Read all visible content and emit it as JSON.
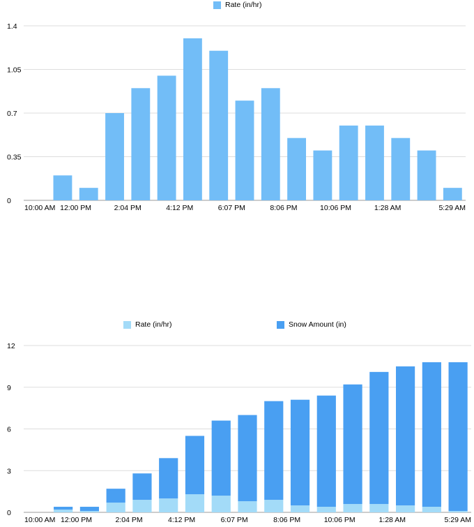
{
  "chart_data": [
    {
      "type": "bar",
      "categories": [
        "10:00 AM",
        "",
        "12:00 PM",
        "",
        "2:04 PM",
        "",
        "4:12 PM",
        "",
        "6:07 PM",
        "",
        "8:06 PM",
        "",
        "10:06 PM",
        "",
        "1:28 AM",
        "",
        "5:29 AM"
      ],
      "x_tick_labels": [
        "10:00 AM",
        "12:00 PM",
        "2:04 PM",
        "4:12 PM",
        "6:07 PM",
        "8:06 PM",
        "10:06 PM",
        "1:28 AM",
        "5:29 AM"
      ],
      "series": [
        {
          "name": "Rate (in/hr)",
          "color": "#72bdf7",
          "values": [
            0,
            0.2,
            0.1,
            0.7,
            0.9,
            1.0,
            1.3,
            1.2,
            0.8,
            0.9,
            0.5,
            0.4,
            0.6,
            0.6,
            0.5,
            0.4,
            0.1
          ]
        }
      ],
      "ylim": [
        0,
        1.4
      ],
      "y_ticks": [
        "0",
        "0.35",
        "0.7",
        "1.05",
        "1.4"
      ],
      "y_tick_values": [
        0,
        0.35,
        0.7,
        1.05,
        1.4
      ],
      "grid": true,
      "legend": "top-center"
    },
    {
      "type": "bar",
      "stacked": true,
      "categories": [
        "10:00 AM",
        "",
        "12:00 PM",
        "",
        "2:04 PM",
        "",
        "4:12 PM",
        "",
        "6:07 PM",
        "",
        "8:06 PM",
        "",
        "10:06 PM",
        "",
        "1:28 AM",
        "",
        "5:29 AM"
      ],
      "x_tick_labels": [
        "10:00 AM",
        "12:00 PM",
        "2:04 PM",
        "4:12 PM",
        "6:07 PM",
        "8:06 PM",
        "10:06 PM",
        "1:28 AM",
        "5:29 AM"
      ],
      "series": [
        {
          "name": "Rate (in/hr)",
          "color": "#a3dbf8",
          "values": [
            0,
            0.2,
            0.1,
            0.7,
            0.9,
            1.0,
            1.3,
            1.2,
            0.8,
            0.9,
            0.5,
            0.4,
            0.6,
            0.6,
            0.5,
            0.4,
            0.1
          ]
        },
        {
          "name": "Snow Amount (in)",
          "color": "#499ff2",
          "values": [
            0,
            0.2,
            0.3,
            1.0,
            1.9,
            2.9,
            4.2,
            5.4,
            6.2,
            7.1,
            7.6,
            8.0,
            8.6,
            9.5,
            10.0,
            10.4,
            10.7
          ]
        }
      ],
      "ylim": [
        0,
        12
      ],
      "y_ticks": [
        "0",
        "3",
        "6",
        "9",
        "12"
      ],
      "y_tick_values": [
        0,
        3,
        6,
        9,
        12
      ],
      "grid": true,
      "legend": "top-center"
    }
  ]
}
